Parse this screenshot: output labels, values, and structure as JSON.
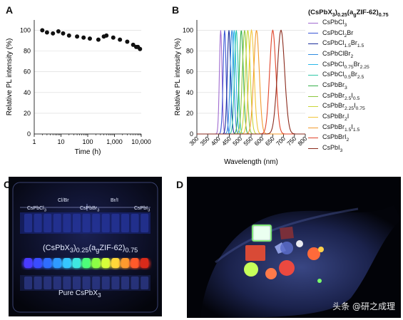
{
  "panels": {
    "a": "A",
    "b": "B",
    "c": "C",
    "d": "D"
  },
  "chart_data": [
    {
      "type": "scatter",
      "panel": "A",
      "xlabel": "Time (h)",
      "ylabel": "Relative PL intensity (%)",
      "xscale": "log",
      "xlim": [
        1,
        10000
      ],
      "ylim": [
        0,
        110
      ],
      "xticks": [
        "1",
        "10",
        "100",
        "1,000",
        "10,000"
      ],
      "yticks": [
        "0",
        "20",
        "40",
        "60",
        "80",
        "100"
      ],
      "grid": "horizontal",
      "x": [
        2,
        3,
        5,
        8,
        12,
        20,
        40,
        70,
        120,
        250,
        400,
        500,
        900,
        1600,
        3000,
        5000,
        6500,
        7500,
        9000
      ],
      "y": [
        100,
        98,
        97,
        99,
        97,
        95,
        94,
        93,
        92,
        91,
        94,
        95,
        93,
        91,
        89,
        86,
        84,
        84,
        82
      ]
    },
    {
      "type": "line",
      "panel": "B",
      "title": "(CsPbX3)0.25(agZIF-62)0.75",
      "xlabel": "Wavelength (nm)",
      "ylabel": "Relative PL intensity (%)",
      "xlim": [
        300,
        800
      ],
      "ylim": [
        0,
        110
      ],
      "xticks": [
        "300",
        "350",
        "400",
        "450",
        "500",
        "550",
        "600",
        "650",
        "700",
        "750",
        "800"
      ],
      "yticks": [
        "0",
        "20",
        "40",
        "60",
        "80",
        "100"
      ],
      "legend_position": "right",
      "series": [
        {
          "name": "CsPbCl3",
          "color": "#a06bd0",
          "peak_nm": 410,
          "fwhm_nm": 14,
          "peak_value": 100
        },
        {
          "name": "CsPbCl2Br",
          "color": "#3a55d6",
          "peak_nm": 428,
          "fwhm_nm": 16,
          "peak_value": 100
        },
        {
          "name": "CsPbCl1.5Br1.5",
          "color": "#1a2d9b",
          "peak_nm": 448,
          "fwhm_nm": 18,
          "peak_value": 100
        },
        {
          "name": "CsPbClBr2",
          "color": "#2f8be0",
          "peak_nm": 462,
          "fwhm_nm": 20,
          "peak_value": 100
        },
        {
          "name": "CsPbCl0.75Br2.25",
          "color": "#2ab7e8",
          "peak_nm": 472,
          "fwhm_nm": 20,
          "peak_value": 100
        },
        {
          "name": "CsPbCl0.5Br2.5",
          "color": "#2ec7a6",
          "peak_nm": 482,
          "fwhm_nm": 20,
          "peak_value": 100
        },
        {
          "name": "CsPbBr3",
          "color": "#36b04a",
          "peak_nm": 505,
          "fwhm_nm": 22,
          "peak_value": 100
        },
        {
          "name": "CsPbBr2.5I0.5",
          "color": "#8cc63f",
          "peak_nm": 520,
          "fwhm_nm": 24,
          "peak_value": 100
        },
        {
          "name": "CsPbBr2.25I0.75",
          "color": "#c9d639",
          "peak_nm": 535,
          "fwhm_nm": 26,
          "peak_value": 100
        },
        {
          "name": "CsPbBr2I",
          "color": "#f2c53a",
          "peak_nm": 552,
          "fwhm_nm": 28,
          "peak_value": 100
        },
        {
          "name": "CsPbBr1.5I1.5",
          "color": "#f29b2e",
          "peak_nm": 575,
          "fwhm_nm": 30,
          "peak_value": 100
        },
        {
          "name": "CsPbBrI2",
          "color": "#e1442a",
          "peak_nm": 650,
          "fwhm_nm": 34,
          "peak_value": 100
        },
        {
          "name": "CsPbI3",
          "color": "#8a2a1c",
          "peak_nm": 688,
          "fwhm_nm": 40,
          "peak_value": 100
        }
      ]
    }
  ],
  "legend": {
    "title_parts": [
      {
        "t": "(CsPbX",
        "s": ""
      },
      {
        "t": "3",
        "s": "sub"
      },
      {
        "t": ")",
        "s": ""
      },
      {
        "t": "0.25",
        "s": "sub"
      },
      {
        "t": "(a",
        "s": ""
      },
      {
        "t": "g",
        "s": "sub"
      },
      {
        "t": "ZIF-62)",
        "s": ""
      },
      {
        "t": "0.75",
        "s": "sub"
      }
    ],
    "items": [
      {
        "color": "#a06bd0",
        "parts": [
          {
            "t": "CsPbCl",
            "s": ""
          },
          {
            "t": "3",
            "s": "sub"
          }
        ]
      },
      {
        "color": "#3a55d6",
        "parts": [
          {
            "t": "CsPbCl",
            "s": ""
          },
          {
            "t": "2",
            "s": "sub"
          },
          {
            "t": "Br",
            "s": ""
          }
        ]
      },
      {
        "color": "#1a2d9b",
        "parts": [
          {
            "t": "CsPbCl",
            "s": ""
          },
          {
            "t": "1.5",
            "s": "sub"
          },
          {
            "t": "Br",
            "s": ""
          },
          {
            "t": "1.5",
            "s": "sub"
          }
        ]
      },
      {
        "color": "#2f8be0",
        "parts": [
          {
            "t": "CsPbClBr",
            "s": ""
          },
          {
            "t": "2",
            "s": "sub"
          }
        ]
      },
      {
        "color": "#2ab7e8",
        "parts": [
          {
            "t": "CsPbCl",
            "s": ""
          },
          {
            "t": "0.75",
            "s": "sub"
          },
          {
            "t": "Br",
            "s": ""
          },
          {
            "t": "2.25",
            "s": "sub"
          }
        ]
      },
      {
        "color": "#2ec7a6",
        "parts": [
          {
            "t": "CsPbCl",
            "s": ""
          },
          {
            "t": "0.5",
            "s": "sub"
          },
          {
            "t": "Br",
            "s": ""
          },
          {
            "t": "2.5",
            "s": "sub"
          }
        ]
      },
      {
        "color": "#36b04a",
        "parts": [
          {
            "t": "CsPbBr",
            "s": ""
          },
          {
            "t": "3",
            "s": "sub"
          }
        ]
      },
      {
        "color": "#8cc63f",
        "parts": [
          {
            "t": "CsPbBr",
            "s": ""
          },
          {
            "t": "2.5",
            "s": "sub"
          },
          {
            "t": "I",
            "s": ""
          },
          {
            "t": "0.5",
            "s": "sub"
          }
        ]
      },
      {
        "color": "#c9d639",
        "parts": [
          {
            "t": "CsPbBr",
            "s": ""
          },
          {
            "t": "2.25",
            "s": "sub"
          },
          {
            "t": "I",
            "s": ""
          },
          {
            "t": "0.75",
            "s": "sub"
          }
        ]
      },
      {
        "color": "#f2c53a",
        "parts": [
          {
            "t": "CsPbBr",
            "s": ""
          },
          {
            "t": "2",
            "s": "sub"
          },
          {
            "t": "I",
            "s": ""
          }
        ]
      },
      {
        "color": "#f29b2e",
        "parts": [
          {
            "t": "CsPbBr",
            "s": ""
          },
          {
            "t": "1.5",
            "s": "sub"
          },
          {
            "t": "I",
            "s": ""
          },
          {
            "t": "1.5",
            "s": "sub"
          }
        ]
      },
      {
        "color": "#e1442a",
        "parts": [
          {
            "t": "CsPbBrI",
            "s": ""
          },
          {
            "t": "2",
            "s": "sub"
          }
        ]
      },
      {
        "color": "#8a2a1c",
        "parts": [
          {
            "t": "CsPbI",
            "s": ""
          },
          {
            "t": "3",
            "s": "sub"
          }
        ]
      }
    ]
  },
  "photo_c": {
    "label_left": "CsPbCl3",
    "label_mid": "CsPbBr3",
    "label_right": "CsPbI3",
    "label_clbr": "Cl/Br",
    "label_bri": "Br/I",
    "composite_label": "(CsPbX3)0.25(agZIF-62)0.75",
    "pure_label": "Pure CsPbX3",
    "vial_colors": [
      "#4a3bff",
      "#3a4cff",
      "#2f6dff",
      "#2f9bff",
      "#36c7ff",
      "#3fe7e0",
      "#4dff7a",
      "#8cff45",
      "#d6ff3a",
      "#ffd83a",
      "#ff9a2e",
      "#ff5a2a",
      "#d92a1a"
    ]
  },
  "photo_d": {
    "watermark": "头条 @研之成理"
  }
}
